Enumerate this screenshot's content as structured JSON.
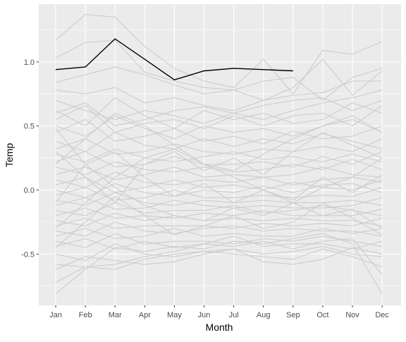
{
  "chart_data": {
    "type": "line",
    "title": "",
    "xlabel": "Month",
    "ylabel": "Temp",
    "categories": [
      "Jan",
      "Feb",
      "Mar",
      "Apr",
      "May",
      "Jun",
      "Jul",
      "Aug",
      "Sep",
      "Oct",
      "Nov",
      "Dec"
    ],
    "ylim": [
      -0.9,
      1.45
    ],
    "yticks": [
      -0.5,
      0.0,
      0.5,
      1.0
    ],
    "ytick_labels": [
      "-0.5",
      "0.0",
      "0.5",
      "1.0"
    ],
    "grid": true,
    "legend": "none",
    "colors": {
      "panel": "#ebebeb",
      "grid": "#ffffff",
      "background_lines": "#cccccc",
      "highlight": "#000000"
    },
    "series": [
      {
        "values": [
          0.94,
          0.96,
          1.18,
          1.02,
          0.86,
          0.93,
          0.95,
          0.94,
          0.93,
          null,
          null,
          null
        ]
      },
      {
        "values": [
          1.17,
          1.37,
          1.35,
          1.12,
          0.95,
          0.85,
          0.8,
          1.02,
          0.75,
          1.09,
          1.06,
          1.16
        ]
      },
      {
        "values": [
          1.03,
          1.15,
          1.17,
          0.92,
          0.85,
          0.8,
          0.78,
          0.7,
          0.8,
          1.02,
          0.74,
          0.93
        ]
      },
      {
        "values": [
          0.84,
          0.9,
          0.96,
          0.9,
          0.82,
          0.75,
          0.78,
          0.85,
          0.88,
          0.7,
          0.88,
          0.95
        ]
      },
      {
        "values": [
          0.78,
          0.75,
          0.8,
          0.68,
          0.72,
          0.66,
          0.62,
          0.7,
          0.74,
          0.76,
          0.85,
          0.85
        ]
      },
      {
        "values": [
          0.7,
          0.62,
          0.55,
          0.62,
          0.58,
          0.52,
          0.6,
          0.55,
          0.62,
          0.68,
          0.72,
          0.78
        ]
      },
      {
        "values": [
          0.62,
          0.5,
          0.72,
          0.58,
          0.48,
          0.62,
          0.55,
          0.6,
          0.52,
          0.55,
          0.68,
          0.6
        ]
      },
      {
        "values": [
          0.55,
          0.66,
          0.45,
          0.52,
          0.55,
          0.48,
          0.58,
          0.5,
          0.58,
          0.6,
          0.5,
          0.66
        ]
      },
      {
        "values": [
          0.5,
          0.42,
          0.58,
          0.48,
          0.4,
          0.5,
          0.45,
          0.48,
          0.42,
          0.5,
          0.55,
          0.45
        ]
      },
      {
        "values": [
          0.45,
          0.55,
          0.38,
          0.42,
          0.48,
          0.38,
          0.42,
          0.36,
          0.46,
          0.4,
          0.42,
          0.5
        ]
      },
      {
        "values": [
          0.38,
          0.3,
          0.45,
          0.35,
          0.32,
          0.4,
          0.34,
          0.4,
          0.36,
          0.44,
          0.38,
          0.32
        ]
      },
      {
        "values": [
          0.32,
          0.4,
          0.28,
          0.3,
          0.36,
          0.3,
          0.28,
          0.32,
          0.3,
          0.34,
          0.3,
          0.4
        ]
      },
      {
        "values": [
          0.28,
          0.22,
          0.32,
          0.25,
          0.22,
          0.26,
          0.3,
          0.24,
          0.26,
          0.22,
          0.28,
          0.22
        ]
      },
      {
        "values": [
          0.22,
          0.3,
          0.18,
          0.2,
          0.26,
          0.2,
          0.2,
          0.22,
          0.18,
          0.26,
          0.2,
          0.3
        ]
      },
      {
        "values": [
          0.18,
          0.12,
          0.22,
          0.16,
          0.14,
          0.18,
          0.14,
          0.16,
          0.2,
          0.16,
          0.24,
          0.16
        ]
      },
      {
        "values": [
          0.12,
          0.18,
          0.08,
          0.12,
          0.18,
          0.1,
          0.12,
          0.1,
          0.12,
          0.18,
          0.12,
          0.1
        ]
      },
      {
        "values": [
          0.08,
          0.02,
          0.14,
          0.06,
          0.04,
          0.08,
          0.06,
          0.1,
          0.04,
          0.08,
          0.1,
          0.06
        ]
      },
      {
        "values": [
          0.04,
          0.1,
          -0.02,
          0.02,
          0.08,
          0.02,
          0.04,
          0.0,
          0.06,
          0.02,
          0.0,
          0.08
        ]
      },
      {
        "values": [
          0.0,
          -0.06,
          0.05,
          -0.02,
          -0.05,
          0.0,
          -0.02,
          0.03,
          -0.02,
          0.04,
          0.05,
          -0.02
        ]
      },
      {
        "values": [
          -0.04,
          0.02,
          -0.08,
          -0.06,
          0.0,
          -0.06,
          -0.06,
          -0.04,
          -0.06,
          -0.04,
          -0.05,
          0.02
        ]
      },
      {
        "values": [
          -0.08,
          -0.12,
          -0.02,
          -0.1,
          -0.12,
          -0.08,
          -0.1,
          -0.08,
          -0.1,
          -0.1,
          -0.08,
          -0.12
        ]
      },
      {
        "values": [
          -0.12,
          -0.06,
          -0.15,
          -0.14,
          -0.08,
          -0.12,
          -0.14,
          -0.12,
          -0.14,
          -0.14,
          -0.12,
          -0.06
        ]
      },
      {
        "values": [
          -0.16,
          -0.2,
          -0.1,
          -0.18,
          -0.16,
          -0.16,
          -0.12,
          -0.18,
          -0.16,
          -0.12,
          -0.16,
          -0.2
        ]
      },
      {
        "values": [
          -0.2,
          -0.14,
          -0.22,
          -0.2,
          -0.22,
          -0.18,
          -0.2,
          -0.16,
          -0.2,
          -0.2,
          -0.2,
          -0.15
        ]
      },
      {
        "values": [
          -0.24,
          -0.28,
          -0.18,
          -0.24,
          -0.2,
          -0.24,
          -0.22,
          -0.24,
          -0.22,
          -0.24,
          -0.24,
          -0.28
        ]
      },
      {
        "values": [
          -0.28,
          -0.22,
          -0.3,
          -0.28,
          -0.28,
          -0.28,
          -0.3,
          -0.26,
          -0.28,
          -0.26,
          -0.28,
          -0.22
        ]
      },
      {
        "values": [
          -0.32,
          -0.36,
          -0.25,
          -0.32,
          -0.34,
          -0.3,
          -0.28,
          -0.32,
          -0.3,
          -0.32,
          -0.32,
          -0.36
        ]
      },
      {
        "values": [
          -0.36,
          -0.3,
          -0.38,
          -0.36,
          -0.3,
          -0.36,
          -0.34,
          -0.36,
          -0.36,
          -0.3,
          -0.34,
          -0.3
        ]
      },
      {
        "values": [
          -0.4,
          -0.45,
          -0.34,
          -0.42,
          -0.4,
          -0.4,
          -0.42,
          -0.38,
          -0.4,
          -0.36,
          -0.4,
          -0.44
        ]
      },
      {
        "values": [
          -0.44,
          -0.38,
          -0.46,
          -0.4,
          -0.45,
          -0.42,
          -0.36,
          -0.44,
          -0.42,
          -0.42,
          -0.46,
          -0.4
        ]
      },
      {
        "values": [
          -0.5,
          -0.55,
          -0.42,
          -0.5,
          -0.52,
          -0.48,
          -0.46,
          -0.5,
          -0.48,
          -0.44,
          -0.5,
          -0.52
        ]
      },
      {
        "values": [
          -0.58,
          -0.6,
          -0.62,
          -0.54,
          -0.5,
          -0.48,
          -0.5,
          -0.52,
          -0.54,
          -0.46,
          -0.52,
          -0.6
        ]
      },
      {
        "values": [
          -0.62,
          -0.52,
          -0.55,
          -0.58,
          -0.56,
          -0.5,
          -0.46,
          -0.56,
          -0.58,
          -0.54,
          -0.45,
          -0.5
        ]
      },
      {
        "values": [
          -0.72,
          -0.6,
          -0.58,
          -0.52,
          -0.48,
          -0.42,
          -0.44,
          -0.4,
          -0.46,
          -0.4,
          -0.38,
          -0.66
        ]
      },
      {
        "values": [
          -0.81,
          -0.62,
          -0.45,
          -0.48,
          -0.44,
          -0.46,
          -0.4,
          -0.42,
          -0.38,
          -0.34,
          -0.42,
          -0.81
        ]
      },
      {
        "values": [
          0.6,
          0.68,
          0.5,
          0.55,
          0.62,
          0.65,
          0.6,
          0.66,
          0.7,
          0.72,
          0.62,
          0.7
        ]
      },
      {
        "values": [
          0.3,
          0.1,
          -0.1,
          0.2,
          0.3,
          0.15,
          0.25,
          0.12,
          0.3,
          0.45,
          0.35,
          0.25
        ]
      },
      {
        "values": [
          -0.1,
          0.2,
          0.3,
          0.1,
          -0.05,
          0.05,
          -0.1,
          0.0,
          -0.08,
          0.1,
          -0.02,
          0.12
        ]
      },
      {
        "values": [
          0.48,
          0.2,
          0.02,
          -0.12,
          -0.2,
          -0.24,
          -0.14,
          -0.2,
          -0.1,
          0.02,
          0.1,
          0.25
        ]
      },
      {
        "values": [
          -0.3,
          -0.1,
          0.1,
          0.25,
          0.32,
          0.2,
          0.1,
          0.0,
          -0.1,
          -0.2,
          -0.15,
          -0.3
        ]
      },
      {
        "values": [
          0.2,
          0.4,
          0.6,
          0.5,
          0.35,
          0.2,
          0.15,
          0.28,
          0.4,
          0.5,
          0.58,
          0.45
        ]
      },
      {
        "values": [
          -0.45,
          -0.25,
          -0.05,
          -0.2,
          -0.35,
          -0.28,
          -0.2,
          -0.3,
          -0.25,
          -0.1,
          -0.22,
          -0.35
        ]
      }
    ]
  }
}
